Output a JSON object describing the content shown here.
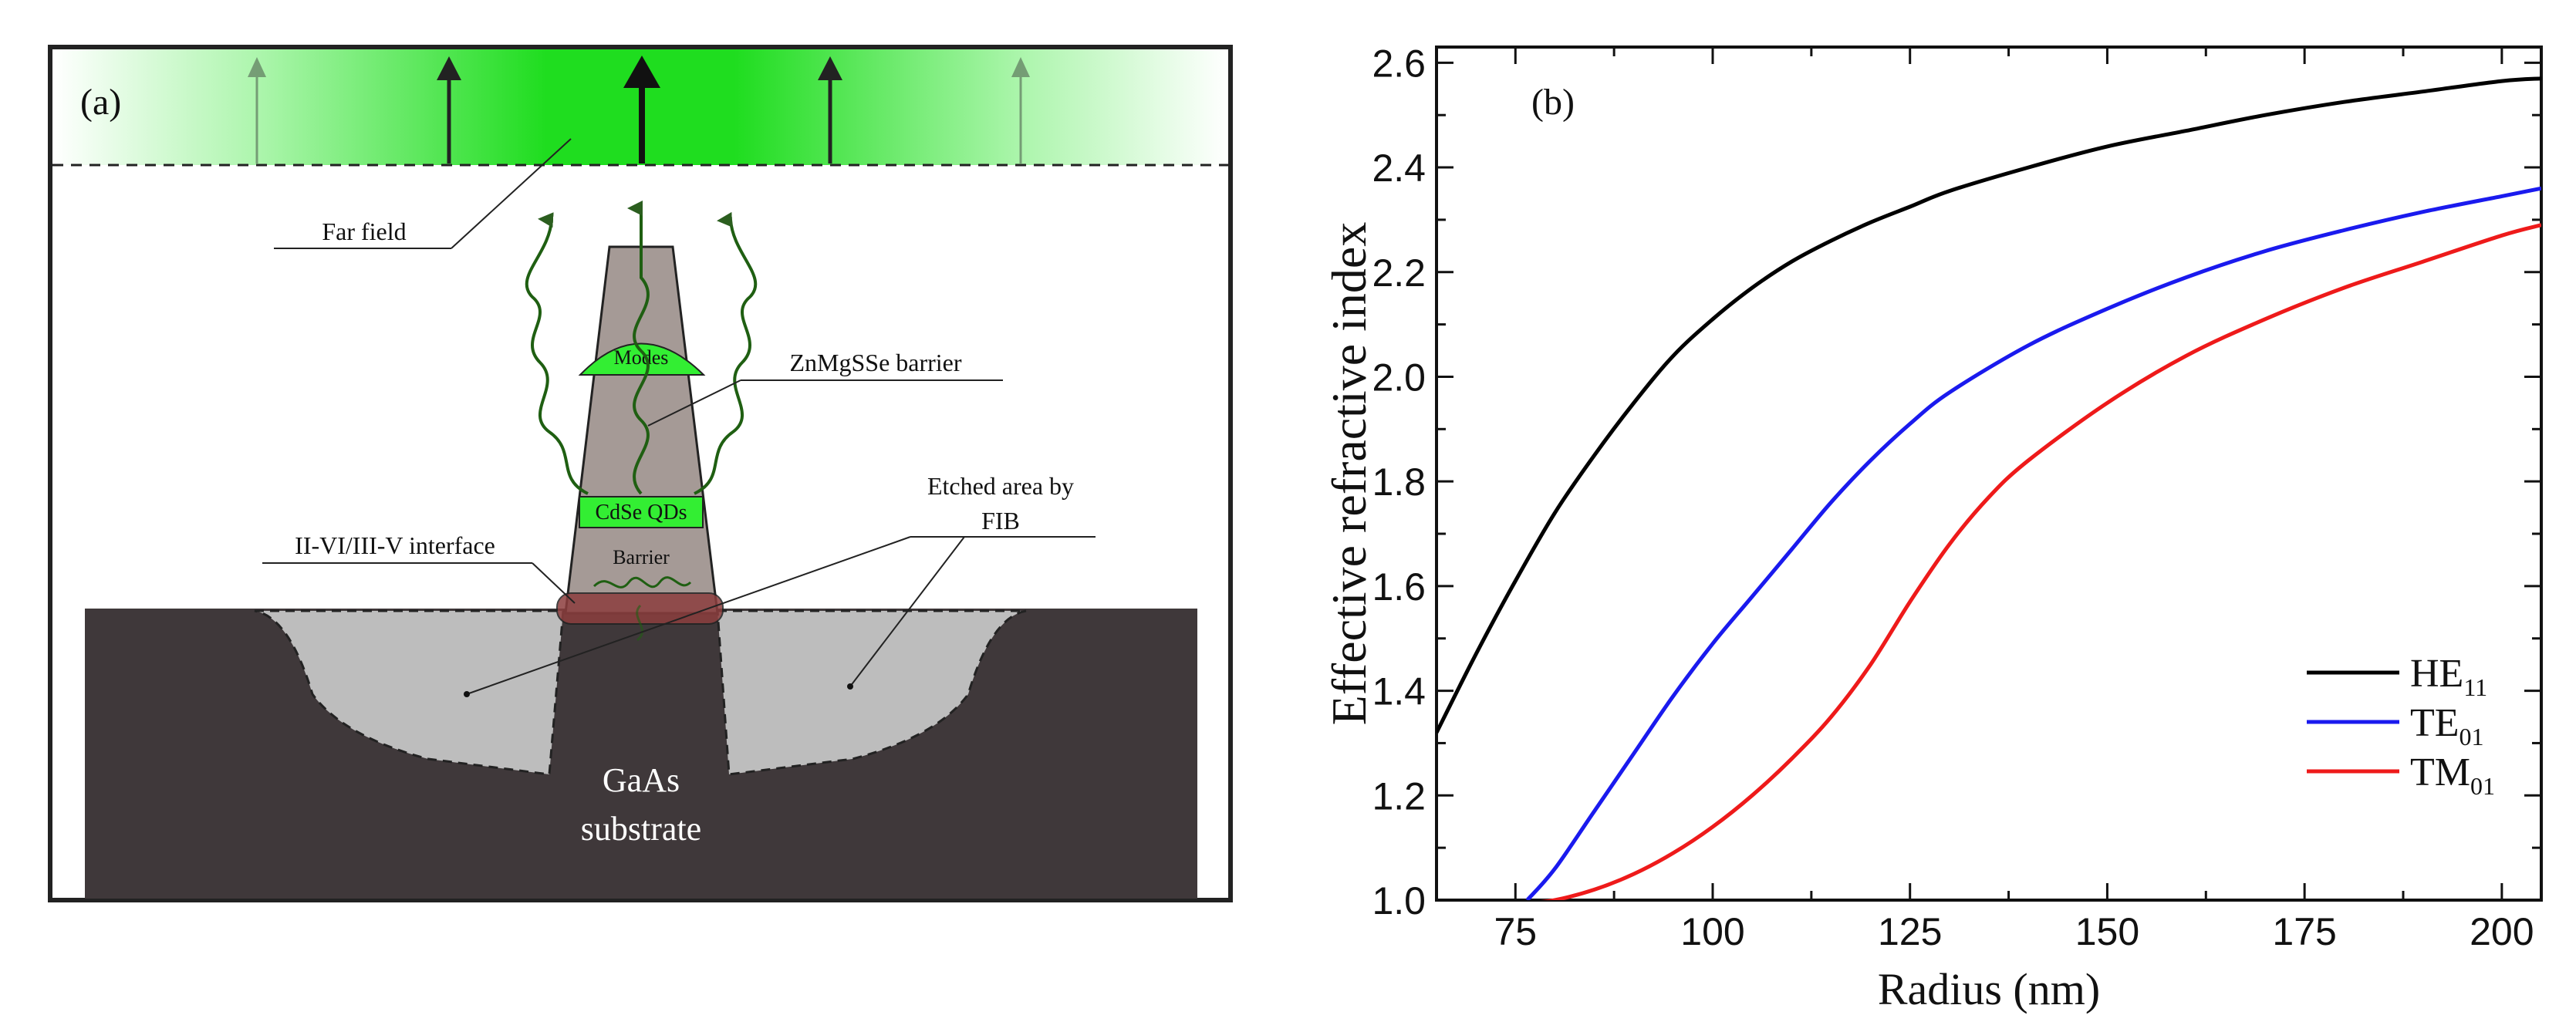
{
  "panel_a": {
    "label": "(a)",
    "far_field_label": "Far field",
    "barrier_label": "ZnMgSSe barrier",
    "modes_label": "Modes",
    "qd_label": "CdSe QDs",
    "inner_barrier_label": "Barrier",
    "interface_label": "II-VI/III-V interface",
    "etched_label_line1": "Etched area by",
    "etched_label_line2": "FIB",
    "substrate_line1": "GaAs",
    "substrate_line2": "substrate",
    "colors": {
      "field_green": "#22dd22",
      "pillar": "#a59a96",
      "substrate": "#3f383a",
      "etched": "#bdbdbd",
      "modes": "#33ee33",
      "interface": "#8c3e3e",
      "wave": "#1f5f12"
    }
  },
  "panel_b": {
    "label": "(b)",
    "chart_data": {
      "type": "line",
      "title": "",
      "xlabel": "Radius (nm)",
      "ylabel": "Effective refractive index",
      "xlim": [
        65,
        205
      ],
      "ylim": [
        1.0,
        2.63
      ],
      "xticks": [
        75,
        100,
        125,
        150,
        175,
        200
      ],
      "yticks": [
        1.0,
        1.2,
        1.4,
        1.6,
        1.8,
        2.0,
        2.2,
        2.4,
        2.6
      ],
      "xtick_labels": [
        "75",
        "100",
        "125",
        "150",
        "175",
        "200"
      ],
      "ytick_labels": [
        "1.0",
        "1.2",
        "1.4",
        "1.6",
        "1.8",
        "2.0",
        "2.2",
        "2.4",
        "2.6"
      ],
      "legend_position": "bottom-right",
      "series": [
        {
          "name": "HE",
          "sub": "11",
          "color": "#000000",
          "x": [
            65,
            70,
            75,
            80,
            85,
            90,
            95,
            100,
            105,
            110,
            115,
            120,
            125,
            130,
            140,
            150,
            160,
            170,
            180,
            190,
            200,
            205
          ],
          "y": [
            1.32,
            1.47,
            1.61,
            1.74,
            1.85,
            1.95,
            2.04,
            2.11,
            2.17,
            2.22,
            2.26,
            2.295,
            2.325,
            2.355,
            2.4,
            2.44,
            2.47,
            2.5,
            2.525,
            2.545,
            2.565,
            2.57
          ]
        },
        {
          "name": "TE",
          "sub": "01",
          "color": "#1a1aee",
          "x": [
            76.5,
            80,
            85,
            90,
            95,
            100,
            105,
            110,
            115,
            120,
            125,
            130,
            140,
            150,
            160,
            170,
            180,
            190,
            200,
            205
          ],
          "y": [
            1.0,
            1.06,
            1.17,
            1.28,
            1.39,
            1.49,
            1.58,
            1.67,
            1.76,
            1.84,
            1.91,
            1.97,
            2.06,
            2.13,
            2.19,
            2.24,
            2.28,
            2.315,
            2.345,
            2.36
          ]
        },
        {
          "name": "TM",
          "sub": "01",
          "color": "#ee1a1a",
          "x": [
            77,
            80,
            85,
            90,
            95,
            100,
            105,
            110,
            115,
            120,
            125,
            130,
            135,
            140,
            150,
            160,
            170,
            180,
            190,
            200,
            205
          ],
          "y": [
            0.995,
            1.0,
            1.02,
            1.05,
            1.09,
            1.14,
            1.2,
            1.27,
            1.35,
            1.45,
            1.57,
            1.68,
            1.77,
            1.84,
            1.95,
            2.04,
            2.11,
            2.17,
            2.22,
            2.27,
            2.29
          ]
        }
      ]
    }
  }
}
